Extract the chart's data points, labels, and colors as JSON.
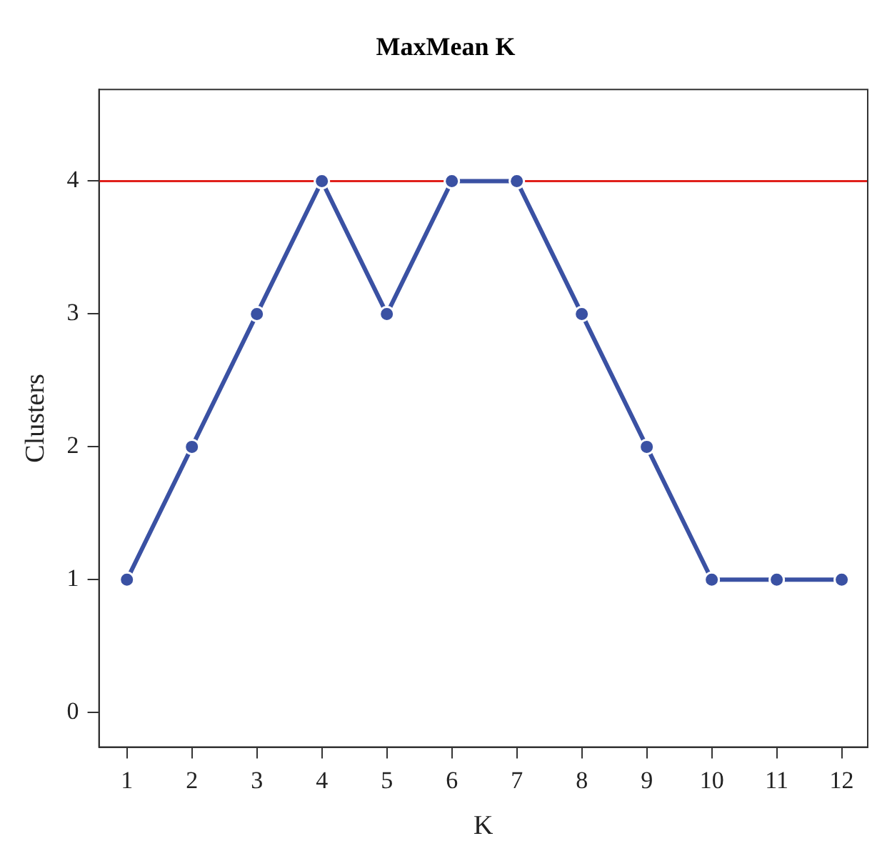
{
  "chart_data": {
    "type": "line",
    "title": "MaxMean K",
    "xlabel": "K",
    "ylabel": "Clusters",
    "x": [
      1,
      2,
      3,
      4,
      5,
      6,
      7,
      8,
      9,
      10,
      11,
      12
    ],
    "series": [
      {
        "color": "#3a51a3",
        "values": [
          1,
          2,
          3,
          4,
          3,
          4,
          4,
          3,
          2,
          1,
          1,
          1
        ]
      }
    ],
    "xlim": [
      0.57,
      12.4
    ],
    "xticks": [
      1,
      2,
      3,
      4,
      5,
      6,
      7,
      8,
      9,
      10,
      11,
      12
    ],
    "ylim": [
      -0.26,
      4.69
    ],
    "yticks": [
      0,
      1,
      2,
      3,
      4
    ],
    "ref_lines": [
      {
        "axis": "y",
        "value": 4,
        "color": "#e0201b"
      }
    ],
    "grid": false,
    "legend": false,
    "marker": "circle",
    "line_style": "solid"
  }
}
